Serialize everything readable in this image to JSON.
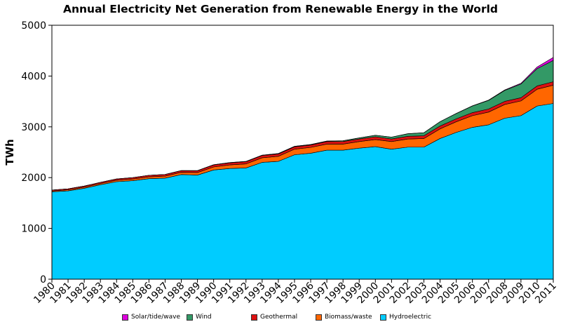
{
  "chart_data": {
    "type": "area",
    "stacked": true,
    "title": "Annual Electricity Net Generation from Renewable Energy in the World",
    "xlabel": "",
    "ylabel": "TWh",
    "ylim": [
      0,
      5000
    ],
    "yticks": [
      "0",
      "1000",
      "2000",
      "3000",
      "4000",
      "5000"
    ],
    "x": [
      "1980",
      "1981",
      "1982",
      "1983",
      "1984",
      "1985",
      "1986",
      "1987",
      "1988",
      "1989",
      "1990",
      "1991",
      "1992",
      "1993",
      "1994",
      "1995",
      "1996",
      "1997",
      "1998",
      "1999",
      "2000",
      "2001",
      "2002",
      "2003",
      "2004",
      "2005",
      "2006",
      "2007",
      "2008",
      "2009",
      "2010",
      "2011"
    ],
    "grid": false,
    "legend_position": "bottom",
    "series": [
      {
        "name": "Hydroelectric",
        "color": "#00ccff",
        "values": [
          1720,
          1740,
          1790,
          1860,
          1920,
          1940,
          1980,
          1990,
          2060,
          2050,
          2150,
          2180,
          2190,
          2300,
          2320,
          2450,
          2480,
          2540,
          2540,
          2580,
          2610,
          2560,
          2600,
          2600,
          2770,
          2890,
          2990,
          3040,
          3170,
          3220,
          3410,
          3460
        ]
      },
      {
        "name": "Biomass/waste",
        "color": "#ff6600",
        "values": [
          18,
          20,
          22,
          24,
          28,
          32,
          36,
          40,
          44,
          50,
          60,
          70,
          80,
          90,
          100,
          110,
          115,
          120,
          120,
          130,
          140,
          150,
          160,
          170,
          190,
          210,
          230,
          250,
          270,
          290,
          330,
          360
        ]
      },
      {
        "name": "Geothermal",
        "color": "#dd1111",
        "values": [
          18,
          20,
          22,
          24,
          26,
          28,
          30,
          32,
          34,
          36,
          40,
          42,
          44,
          46,
          46,
          48,
          48,
          50,
          52,
          52,
          54,
          52,
          54,
          54,
          56,
          58,
          60,
          61,
          62,
          63,
          66,
          68
        ]
      },
      {
        "name": "Wind",
        "color": "#339966",
        "values": [
          0,
          0,
          0,
          0,
          0,
          0,
          0,
          0,
          1,
          2,
          4,
          4,
          5,
          6,
          8,
          8,
          9,
          10,
          14,
          20,
          30,
          35,
          50,
          60,
          85,
          104,
          130,
          170,
          215,
          270,
          340,
          420
        ]
      },
      {
        "name": "Solar/tide/wave",
        "color": "#dd00dd",
        "values": [
          0,
          0,
          0,
          0,
          0,
          0,
          0,
          0,
          0,
          0,
          1,
          1,
          1,
          1,
          1,
          1,
          1,
          1,
          1,
          1,
          1,
          1,
          1,
          1,
          2,
          3,
          4,
          6,
          10,
          15,
          32,
          60
        ]
      }
    ]
  }
}
